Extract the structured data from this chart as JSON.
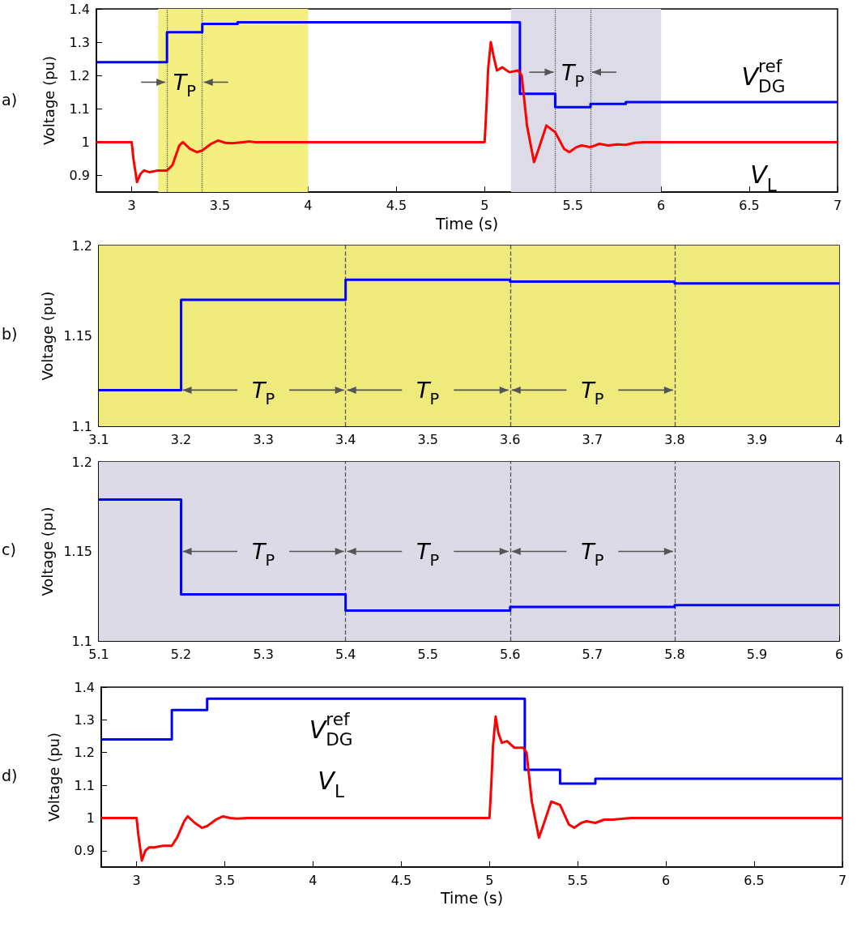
{
  "chart_data": [
    {
      "type": "line",
      "ylabel": "Voltage (pu)",
      "xlabel": "Time (s)",
      "xlim": [
        2.8,
        7
      ],
      "xticks": [
        3,
        3.5,
        4,
        4.5,
        5,
        5.5,
        6,
        6.5,
        7
      ],
      "ylim": [
        0.85,
        1.4
      ],
      "yticks": [
        0.9,
        1,
        1.1,
        1.2,
        1.3,
        1.4
      ],
      "grid": false,
      "legend": false,
      "series": [
        {
          "name": "V$^{ref}$$_{DG}$",
          "type": "step",
          "color": "#0000ff",
          "x": [
            2.8,
            3.2,
            3.4,
            3.6,
            5.2,
            5.4,
            5.6,
            5.8,
            7
          ],
          "values": [
            1.24,
            1.33,
            1.355,
            1.36,
            1.145,
            1.105,
            1.115,
            1.12,
            1.12
          ]
        },
        {
          "name": "V$_{L}$",
          "type": "line",
          "color": "#ff0000",
          "x": [
            2.8,
            3.0,
            3.01,
            3.03,
            3.05,
            3.07,
            3.1,
            3.15,
            3.2,
            3.23,
            3.27,
            3.29,
            3.33,
            3.37,
            3.4,
            3.45,
            3.49,
            3.53,
            3.57,
            3.63,
            3.67,
            3.7,
            5.0,
            5.01,
            5.02,
            5.035,
            5.05,
            5.07,
            5.1,
            5.14,
            5.19,
            5.21,
            5.24,
            5.28,
            5.3,
            5.35,
            5.4,
            5.45,
            5.48,
            5.52,
            5.55,
            5.6,
            5.65,
            5.7,
            5.75,
            5.8,
            5.85,
            5.9,
            7
          ],
          "values": [
            1,
            1,
            0.95,
            0.88,
            0.905,
            0.915,
            0.91,
            0.915,
            0.915,
            0.93,
            0.99,
            1.0,
            0.98,
            0.97,
            0.975,
            0.995,
            1.005,
            0.998,
            0.997,
            1.0,
            1.002,
            1.0,
            1.0,
            1.1,
            1.22,
            1.3,
            1.26,
            1.215,
            1.225,
            1.21,
            1.215,
            1.2,
            1.05,
            0.94,
            0.97,
            1.05,
            1.03,
            0.98,
            0.97,
            0.985,
            0.99,
            0.985,
            0.995,
            0.99,
            0.993,
            0.992,
            0.998,
            1.0,
            1.0
          ]
        }
      ],
      "ref_lines": [
        {
          "axis": "x",
          "value": 3.2,
          "line_style": "dotted",
          "color": "#555555"
        },
        {
          "axis": "x",
          "value": 3.4,
          "line_style": "dotted",
          "color": "#555555"
        },
        {
          "axis": "x",
          "value": 5.4,
          "line_style": "dotted",
          "color": "#555555"
        },
        {
          "axis": "x",
          "value": 5.6,
          "line_style": "dotted",
          "color": "#555555"
        }
      ],
      "bands": [
        {
          "axis": "x",
          "from": 3.15,
          "to": 4,
          "color": "#f3ef80"
        },
        {
          "axis": "x",
          "from": 5.15,
          "to": 6,
          "color": "#dddbe8"
        }
      ],
      "annotations": [
        "a)",
        {
          "text": "T$_{P}$",
          "x": 3.4,
          "y": 1.18
        },
        {
          "text": "T$_{P}$",
          "x": 5.6,
          "y": 1.21
        }
      ]
    },
    {
      "type": "step",
      "ylabel": "Voltage (pu)",
      "xlim": [
        3.1,
        4
      ],
      "xticks": [
        3.1,
        3.2,
        3.3,
        3.4,
        3.5,
        3.6,
        3.7,
        3.8,
        3.9,
        4
      ],
      "ylim": [
        1.1,
        1.2
      ],
      "yticks": [
        1.1,
        1.15,
        1.2
      ],
      "grid": false,
      "legend": false,
      "series": [
        {
          "color": "#0000ff",
          "x": [
            3.1,
            3.2,
            3.4,
            3.6,
            3.8,
            4
          ],
          "values": [
            1.12,
            1.17,
            1.181,
            1.18,
            1.179,
            1.179
          ]
        }
      ],
      "ref_lines": [
        {
          "axis": "x",
          "value": 3.4,
          "line_style": "dashed",
          "color": "#555555"
        },
        {
          "axis": "x",
          "value": 3.6,
          "line_style": "dashed",
          "color": "#555555"
        },
        {
          "axis": "x",
          "value": 3.8,
          "line_style": "dashed",
          "color": "#555555"
        }
      ],
      "bands": [
        {
          "axis": "x",
          "from": 3.1,
          "to": 4,
          "color": "#eeea7c"
        }
      ],
      "annotations": [
        "b)",
        {
          "text": "T$_{P}$",
          "x": 3.4,
          "y": 1.12
        },
        {
          "text": "T$_{P}$",
          "x": 3.6,
          "y": 1.12
        },
        {
          "text": "T$_{P}$",
          "x": 3.8,
          "y": 1.12
        }
      ]
    },
    {
      "type": "step",
      "ylabel": "Voltage (pu)",
      "xlim": [
        5.1,
        6
      ],
      "xticks": [
        5.1,
        5.2,
        5.3,
        5.4,
        5.5,
        5.6,
        5.7,
        5.8,
        5.9,
        6
      ],
      "ylim": [
        1.1,
        1.2
      ],
      "yticks": [
        1.1,
        1.15,
        1.2
      ],
      "grid": false,
      "legend": false,
      "series": [
        {
          "color": "#0000ff",
          "x": [
            5.1,
            5.2,
            5.4,
            5.6,
            5.8,
            6
          ],
          "values": [
            1.179,
            1.126,
            1.117,
            1.119,
            1.12,
            1.12
          ]
        }
      ],
      "ref_lines": [
        {
          "axis": "x",
          "value": 5.4,
          "line_style": "dashed",
          "color": "#555555"
        },
        {
          "axis": "x",
          "value": 5.6,
          "line_style": "dashed",
          "color": "#555555"
        },
        {
          "axis": "x",
          "value": 5.8,
          "line_style": "dashed",
          "color": "#555555"
        }
      ],
      "bands": [
        {
          "axis": "x",
          "from": 5.1,
          "to": 6,
          "color": "#dcdae6"
        }
      ],
      "annotations": [
        "c)",
        {
          "text": "T$_{P}$",
          "x": 5.4,
          "y": 1.15
        },
        {
          "text": "T$_{P}$",
          "x": 5.6,
          "y": 1.15
        },
        {
          "text": "T$_{P}$",
          "x": 5.8,
          "y": 1.15
        }
      ]
    },
    {
      "type": "line",
      "ylabel": "Voltage (pu)",
      "xlabel": "Time (s)",
      "xlim": [
        2.8,
        7
      ],
      "xticks": [
        3,
        3.5,
        4,
        4.5,
        5,
        5.5,
        6,
        6.5,
        7
      ],
      "ylim": [
        0.85,
        1.4
      ],
      "yticks": [
        0.9,
        1,
        1.1,
        1.2,
        1.3,
        1.4
      ],
      "grid": false,
      "legend": false,
      "series": [
        {
          "name": "V$^{ref}$$_{DG}$",
          "type": "step",
          "color": "#0000ff",
          "x": [
            2.8,
            3.2,
            3.4,
            5.2,
            5.4,
            5.6,
            7
          ],
          "values": [
            1.24,
            1.33,
            1.365,
            1.147,
            1.105,
            1.12,
            1.12
          ]
        },
        {
          "name": "V$_{L}$",
          "type": "line",
          "color": "#ff0000",
          "x": [
            2.8,
            3.0,
            3.01,
            3.03,
            3.05,
            3.07,
            3.1,
            3.15,
            3.2,
            3.23,
            3.27,
            3.29,
            3.33,
            3.37,
            3.4,
            3.45,
            3.49,
            3.53,
            3.57,
            3.63,
            3.7,
            5.0,
            5.01,
            5.02,
            5.035,
            5.05,
            5.07,
            5.1,
            5.14,
            5.19,
            5.21,
            5.24,
            5.28,
            5.3,
            5.35,
            5.4,
            5.45,
            5.48,
            5.52,
            5.55,
            5.6,
            5.65,
            5.7,
            5.8,
            5.9,
            7
          ],
          "values": [
            1,
            1,
            0.95,
            0.87,
            0.9,
            0.91,
            0.91,
            0.915,
            0.915,
            0.94,
            0.99,
            1.005,
            0.985,
            0.97,
            0.975,
            0.995,
            1.005,
            1.0,
            0.998,
            1.0,
            1.0,
            1.0,
            1.1,
            1.22,
            1.31,
            1.26,
            1.23,
            1.235,
            1.215,
            1.215,
            1.2,
            1.05,
            0.94,
            0.97,
            1.05,
            1.04,
            0.98,
            0.97,
            0.985,
            0.99,
            0.985,
            0.995,
            0.995,
            1.0,
            1.0,
            1.0
          ]
        }
      ],
      "annotations": [
        "d)"
      ]
    }
  ]
}
